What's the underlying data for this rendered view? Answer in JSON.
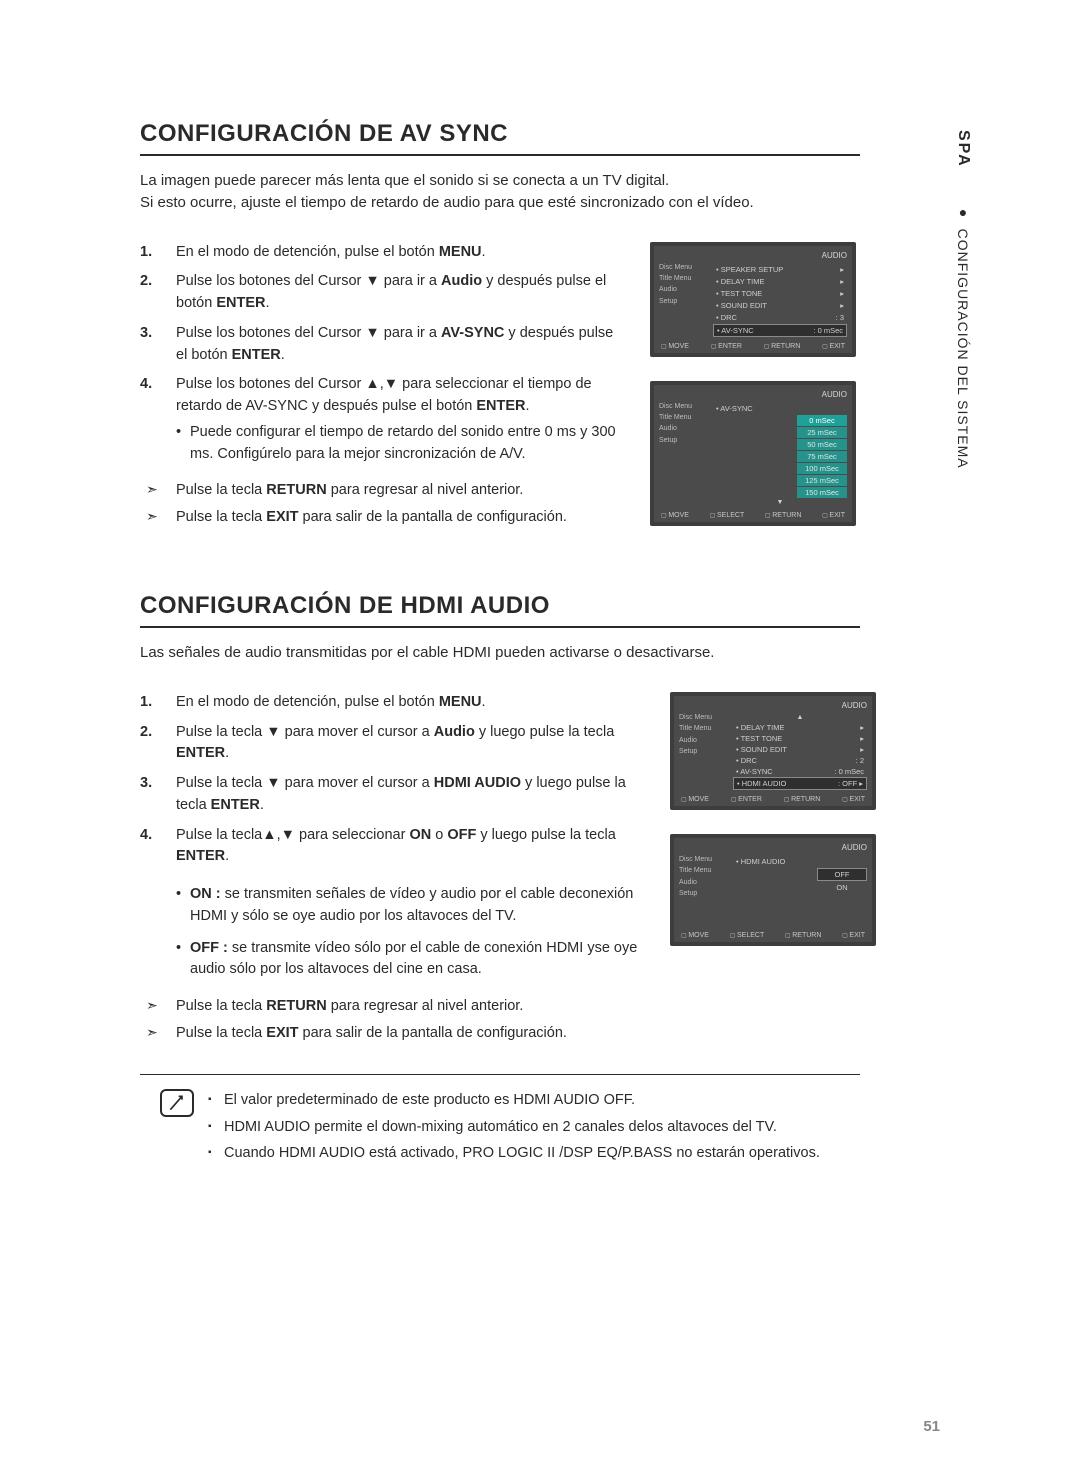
{
  "sidetab": {
    "spa": "SPA",
    "bullet": "●",
    "category": "CONFIGURACIÓN DEL SISTEMA"
  },
  "page_number": "51",
  "section1": {
    "title": "CONFIGURACIÓN DE AV SYNC",
    "intro1": "La imagen puede parecer más lenta que el sonido si se conecta a un TV digital.",
    "intro2": "Si esto ocurre, ajuste el tiempo de retardo de audio para que esté sincronizado con el vídeo.",
    "steps": {
      "s1_a": "En el modo de detención, pulse el botón ",
      "s1_b": "MENU",
      "s1_c": ".",
      "s2_a": "Pulse los botones del Cursor ▼ para ir a ",
      "s2_b": "Audio",
      "s2_c": " y después pulse el botón ",
      "s2_d": "ENTER",
      "s2_e": ".",
      "s3_a": "Pulse los botones del Cursor ▼ para ir a ",
      "s3_b": "AV-SYNC",
      "s3_c": " y después pulse el botón ",
      "s3_d": "ENTER",
      "s3_e": ".",
      "s4_a": "Pulse los botones del Cursor ▲,▼ para seleccionar el tiempo de retardo de AV-SYNC y después pulse el botón ",
      "s4_b": "ENTER",
      "s4_c": ".",
      "s4_sub": "Puede configurar el tiempo de retardo del sonido entre 0 ms y 300 ms. Configúrelo para la mejor sincronización de A/V."
    },
    "arrows": {
      "a1_a": "Pulse la tecla ",
      "a1_b": "RETURN",
      "a1_c": " para regresar al nivel anterior.",
      "a2_a": "Pulse la tecla ",
      "a2_b": "EXIT",
      "a2_c": " para salir de la pantalla de configuración."
    }
  },
  "section2": {
    "title": "CONFIGURACIÓN DE HDMI AUDIO",
    "intro": "Las señales de audio transmitidas por el cable HDMI pueden activarse o desactivarse.",
    "steps": {
      "s1_a": "En el modo de detención, pulse el botón ",
      "s1_b": "MENU",
      "s1_c": ".",
      "s2_a": "Pulse la tecla ▼ para mover el cursor a ",
      "s2_b": "Audio",
      "s2_c": " y luego pulse la tecla ",
      "s2_d": "ENTER",
      "s2_e": ".",
      "s3_a": "Pulse la tecla ▼ para mover el cursor a ",
      "s3_b": "HDMI AUDIO",
      "s3_c": " y luego pulse la tecla ",
      "s3_d": "ENTER",
      "s3_e": ".",
      "s4_a": "Pulse la tecla▲,▼ para seleccionar ",
      "s4_b": "ON",
      "s4_c": " o ",
      "s4_d": "OFF",
      "s4_e": " y luego pulse la tecla ",
      "s4_f": "ENTER",
      "s4_g": "."
    },
    "onoff": {
      "on_b": "ON : ",
      "on_t": "se transmiten señales de vídeo y audio por el cable deconexión HDMI y sólo se oye audio por los altavoces del TV.",
      "off_b": "OFF : ",
      "off_t": "se transmite vídeo sólo por el cable de conexión HDMI yse oye audio sólo por los altavoces del cine en casa."
    },
    "arrows": {
      "a1_a": "Pulse la tecla ",
      "a1_b": "RETURN",
      "a1_c": " para regresar al nivel anterior.",
      "a2_a": "Pulse la tecla ",
      "a2_b": "EXIT",
      "a2_c": " para salir de la pantalla de configuración."
    },
    "notes": {
      "n1": "El valor predeterminado de este producto es HDMI AUDIO OFF.",
      "n2": "HDMI AUDIO permite el down-mixing automático en 2 canales delos altavoces del TV.",
      "n3": "Cuando HDMI AUDIO está activado, PRO LOGIC II /DSP EQ/P.BASS no estarán operativos."
    }
  },
  "osd": {
    "header_right": "AUDIO",
    "left_items": [
      "Disc Menu",
      "Title Menu",
      "Audio",
      "Setup"
    ],
    "footer": {
      "move": "MOVE",
      "enter": "ENTER",
      "select": "SELECT",
      "return": "RETURN",
      "exit": "EXIT"
    },
    "screen1": {
      "rows": [
        {
          "label": "SPEAKER SETUP",
          "val": "",
          "arrow": "▸"
        },
        {
          "label": "DELAY TIME",
          "val": "",
          "arrow": "▸"
        },
        {
          "label": "TEST TONE",
          "val": "",
          "arrow": "▸"
        },
        {
          "label": "SOUND EDIT",
          "val": "",
          "arrow": "▸"
        },
        {
          "label": "DRC",
          "val": ": 3",
          "arrow": ""
        },
        {
          "label": "AV-SYNC",
          "val": ": 0 mSec",
          "arrow": "",
          "selected": true
        }
      ]
    },
    "screen2": {
      "label": "AV-SYNC",
      "options": [
        "0 mSec",
        "25 mSec",
        "50 mSec",
        "75 mSec",
        "100 mSec",
        "125 mSec",
        "150 mSec"
      ],
      "highlight_index": 0
    },
    "screen3": {
      "rows": [
        {
          "label": "DELAY TIME",
          "val": "",
          "arrow": "▸"
        },
        {
          "label": "TEST TONE",
          "val": "",
          "arrow": "▸"
        },
        {
          "label": "SOUND EDIT",
          "val": "",
          "arrow": "▸"
        },
        {
          "label": "DRC",
          "val": ": 2",
          "arrow": ""
        },
        {
          "label": "AV-SYNC",
          "val": ": 0 mSec",
          "arrow": ""
        },
        {
          "label": "HDMI AUDIO",
          "val": ": OFF",
          "arrow": "▸",
          "selected": true
        }
      ]
    },
    "screen4": {
      "label": "HDMI AUDIO",
      "options": [
        "OFF",
        "ON"
      ],
      "highlight_index": -1,
      "box_index": 0
    }
  }
}
